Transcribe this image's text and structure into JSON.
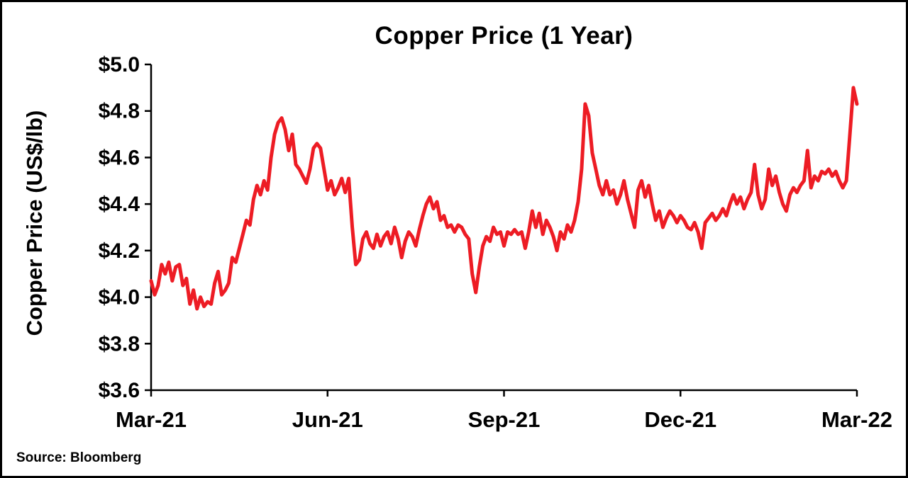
{
  "page": {
    "background": "#ffffff",
    "border_color": "#000000"
  },
  "chart_data": {
    "type": "line",
    "title": "Copper Price (1 Year)",
    "ylabel": "Copper Price (US$/lb)",
    "xlabel": "",
    "source": "Source: Bloomberg",
    "line_color": "#ED1C24",
    "axis_color": "#000000",
    "grid": false,
    "legend": "none",
    "ylim": [
      3.6,
      5.0
    ],
    "xlim": [
      0,
      12
    ],
    "x_unit": "months since Mar-21",
    "y_ticks": [
      {
        "value": 3.6,
        "label": "$3.6"
      },
      {
        "value": 3.8,
        "label": "$3.8"
      },
      {
        "value": 4.0,
        "label": "$4.0"
      },
      {
        "value": 4.2,
        "label": "$4.2"
      },
      {
        "value": 4.4,
        "label": "$4.4"
      },
      {
        "value": 4.6,
        "label": "$4.6"
      },
      {
        "value": 4.8,
        "label": "$4.8"
      },
      {
        "value": 5.0,
        "label": "$5.0"
      }
    ],
    "x_ticks": [
      {
        "value": 0,
        "label": "Mar-21"
      },
      {
        "value": 3,
        "label": "Jun-21"
      },
      {
        "value": 6,
        "label": "Sep-21"
      },
      {
        "value": 9,
        "label": "Dec-21"
      },
      {
        "value": 12,
        "label": "Mar-22"
      }
    ],
    "series": [
      {
        "name": "Copper Price (US$/lb)",
        "points": [
          [
            0,
            4.07
          ],
          [
            0.06,
            4.01
          ],
          [
            0.12,
            4.05
          ],
          [
            0.18,
            4.14
          ],
          [
            0.24,
            4.1
          ],
          [
            0.3,
            4.15
          ],
          [
            0.36,
            4.07
          ],
          [
            0.42,
            4.13
          ],
          [
            0.48,
            4.14
          ],
          [
            0.54,
            4.05
          ],
          [
            0.6,
            4.08
          ],
          [
            0.66,
            3.97
          ],
          [
            0.72,
            4.03
          ],
          [
            0.78,
            3.95
          ],
          [
            0.84,
            4.0
          ],
          [
            0.9,
            3.96
          ],
          [
            0.96,
            3.98
          ],
          [
            1.02,
            3.97
          ],
          [
            1.08,
            4.06
          ],
          [
            1.14,
            4.11
          ],
          [
            1.2,
            4.01
          ],
          [
            1.26,
            4.03
          ],
          [
            1.32,
            4.06
          ],
          [
            1.38,
            4.17
          ],
          [
            1.44,
            4.15
          ],
          [
            1.5,
            4.21
          ],
          [
            1.56,
            4.27
          ],
          [
            1.62,
            4.33
          ],
          [
            1.68,
            4.31
          ],
          [
            1.74,
            4.42
          ],
          [
            1.8,
            4.48
          ],
          [
            1.86,
            4.44
          ],
          [
            1.92,
            4.5
          ],
          [
            1.98,
            4.46
          ],
          [
            2.04,
            4.6
          ],
          [
            2.1,
            4.7
          ],
          [
            2.16,
            4.75
          ],
          [
            2.22,
            4.77
          ],
          [
            2.28,
            4.72
          ],
          [
            2.34,
            4.63
          ],
          [
            2.4,
            4.7
          ],
          [
            2.46,
            4.57
          ],
          [
            2.52,
            4.55
          ],
          [
            2.58,
            4.52
          ],
          [
            2.64,
            4.49
          ],
          [
            2.7,
            4.55
          ],
          [
            2.76,
            4.64
          ],
          [
            2.82,
            4.66
          ],
          [
            2.88,
            4.64
          ],
          [
            2.94,
            4.55
          ],
          [
            3.0,
            4.46
          ],
          [
            3.06,
            4.5
          ],
          [
            3.12,
            4.44
          ],
          [
            3.18,
            4.47
          ],
          [
            3.24,
            4.51
          ],
          [
            3.3,
            4.45
          ],
          [
            3.36,
            4.51
          ],
          [
            3.42,
            4.3
          ],
          [
            3.48,
            4.14
          ],
          [
            3.54,
            4.16
          ],
          [
            3.6,
            4.25
          ],
          [
            3.66,
            4.28
          ],
          [
            3.72,
            4.23
          ],
          [
            3.78,
            4.21
          ],
          [
            3.84,
            4.27
          ],
          [
            3.9,
            4.22
          ],
          [
            3.96,
            4.26
          ],
          [
            4.02,
            4.28
          ],
          [
            4.08,
            4.23
          ],
          [
            4.14,
            4.3
          ],
          [
            4.2,
            4.25
          ],
          [
            4.26,
            4.17
          ],
          [
            4.32,
            4.24
          ],
          [
            4.38,
            4.28
          ],
          [
            4.44,
            4.26
          ],
          [
            4.5,
            4.22
          ],
          [
            4.56,
            4.29
          ],
          [
            4.62,
            4.35
          ],
          [
            4.68,
            4.4
          ],
          [
            4.74,
            4.43
          ],
          [
            4.8,
            4.38
          ],
          [
            4.86,
            4.41
          ],
          [
            4.92,
            4.33
          ],
          [
            4.98,
            4.35
          ],
          [
            5.04,
            4.3
          ],
          [
            5.1,
            4.31
          ],
          [
            5.16,
            4.28
          ],
          [
            5.22,
            4.31
          ],
          [
            5.28,
            4.3
          ],
          [
            5.34,
            4.27
          ],
          [
            5.4,
            4.25
          ],
          [
            5.46,
            4.1
          ],
          [
            5.52,
            4.02
          ],
          [
            5.58,
            4.13
          ],
          [
            5.64,
            4.22
          ],
          [
            5.7,
            4.26
          ],
          [
            5.76,
            4.24
          ],
          [
            5.82,
            4.3
          ],
          [
            5.88,
            4.27
          ],
          [
            5.94,
            4.28
          ],
          [
            6.0,
            4.22
          ],
          [
            6.06,
            4.28
          ],
          [
            6.12,
            4.27
          ],
          [
            6.18,
            4.29
          ],
          [
            6.24,
            4.27
          ],
          [
            6.3,
            4.28
          ],
          [
            6.36,
            4.21
          ],
          [
            6.42,
            4.28
          ],
          [
            6.48,
            4.37
          ],
          [
            6.54,
            4.3
          ],
          [
            6.6,
            4.36
          ],
          [
            6.66,
            4.27
          ],
          [
            6.72,
            4.33
          ],
          [
            6.78,
            4.3
          ],
          [
            6.84,
            4.26
          ],
          [
            6.9,
            4.2
          ],
          [
            6.96,
            4.28
          ],
          [
            7.02,
            4.25
          ],
          [
            7.08,
            4.31
          ],
          [
            7.14,
            4.28
          ],
          [
            7.2,
            4.33
          ],
          [
            7.26,
            4.41
          ],
          [
            7.32,
            4.55
          ],
          [
            7.38,
            4.83
          ],
          [
            7.44,
            4.78
          ],
          [
            7.5,
            4.62
          ],
          [
            7.56,
            4.55
          ],
          [
            7.62,
            4.48
          ],
          [
            7.68,
            4.44
          ],
          [
            7.74,
            4.5
          ],
          [
            7.8,
            4.44
          ],
          [
            7.86,
            4.46
          ],
          [
            7.92,
            4.4
          ],
          [
            7.98,
            4.44
          ],
          [
            8.04,
            4.5
          ],
          [
            8.1,
            4.42
          ],
          [
            8.16,
            4.36
          ],
          [
            8.22,
            4.3
          ],
          [
            8.28,
            4.46
          ],
          [
            8.34,
            4.5
          ],
          [
            8.4,
            4.43
          ],
          [
            8.46,
            4.48
          ],
          [
            8.52,
            4.4
          ],
          [
            8.58,
            4.33
          ],
          [
            8.64,
            4.37
          ],
          [
            8.7,
            4.3
          ],
          [
            8.76,
            4.34
          ],
          [
            8.82,
            4.37
          ],
          [
            8.88,
            4.35
          ],
          [
            8.94,
            4.32
          ],
          [
            9.0,
            4.35
          ],
          [
            9.06,
            4.33
          ],
          [
            9.12,
            4.3
          ],
          [
            9.18,
            4.29
          ],
          [
            9.24,
            4.32
          ],
          [
            9.3,
            4.28
          ],
          [
            9.36,
            4.21
          ],
          [
            9.42,
            4.32
          ],
          [
            9.48,
            4.34
          ],
          [
            9.54,
            4.36
          ],
          [
            9.6,
            4.33
          ],
          [
            9.66,
            4.35
          ],
          [
            9.72,
            4.38
          ],
          [
            9.78,
            4.35
          ],
          [
            9.84,
            4.4
          ],
          [
            9.9,
            4.44
          ],
          [
            9.96,
            4.4
          ],
          [
            10.02,
            4.43
          ],
          [
            10.08,
            4.38
          ],
          [
            10.14,
            4.42
          ],
          [
            10.2,
            4.45
          ],
          [
            10.26,
            4.57
          ],
          [
            10.32,
            4.44
          ],
          [
            10.38,
            4.38
          ],
          [
            10.44,
            4.42
          ],
          [
            10.5,
            4.55
          ],
          [
            10.56,
            4.48
          ],
          [
            10.62,
            4.52
          ],
          [
            10.68,
            4.45
          ],
          [
            10.74,
            4.4
          ],
          [
            10.8,
            4.37
          ],
          [
            10.86,
            4.44
          ],
          [
            10.92,
            4.47
          ],
          [
            10.98,
            4.45
          ],
          [
            11.04,
            4.48
          ],
          [
            11.1,
            4.5
          ],
          [
            11.16,
            4.63
          ],
          [
            11.22,
            4.47
          ],
          [
            11.28,
            4.52
          ],
          [
            11.34,
            4.5
          ],
          [
            11.4,
            4.54
          ],
          [
            11.46,
            4.53
          ],
          [
            11.52,
            4.55
          ],
          [
            11.58,
            4.52
          ],
          [
            11.64,
            4.54
          ],
          [
            11.7,
            4.5
          ],
          [
            11.76,
            4.47
          ],
          [
            11.82,
            4.5
          ],
          [
            11.88,
            4.7
          ],
          [
            11.94,
            4.9
          ],
          [
            12.0,
            4.83
          ]
        ]
      }
    ]
  }
}
